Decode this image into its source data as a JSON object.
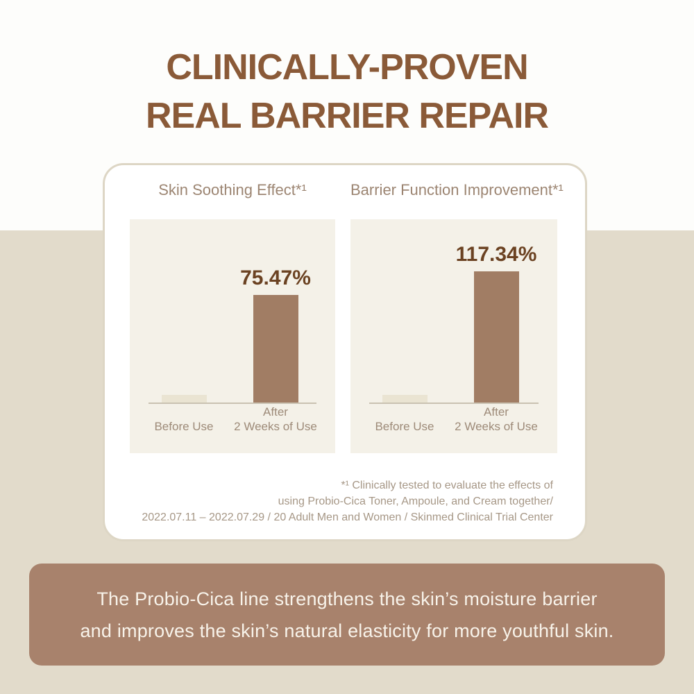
{
  "headline": {
    "line1": "CLINICALLY-PROVEN",
    "line2": "REAL BARRIER REPAIR"
  },
  "chart_data": [
    {
      "type": "bar",
      "title": "Skin Soothing Effect*¹",
      "categories": [
        "Before Use",
        "After 2 Weeks of Use"
      ],
      "values": [
        null,
        75.47
      ],
      "after_value": 75.47,
      "after_value_label": "75.47%",
      "before_label": "Before Use",
      "after_label_line1": "After",
      "after_label_line2": "2 Weeks of Use",
      "ylabel": "",
      "xlabel": "",
      "grid": false,
      "legend": "none",
      "bar_color": "#a17d64",
      "before_bar_color": "#eae4d2"
    },
    {
      "type": "bar",
      "title": "Barrier Function Improvement*¹",
      "categories": [
        "Before Use",
        "After 2 Weeks of Use"
      ],
      "values": [
        null,
        117.34
      ],
      "after_value": 117.34,
      "after_value_label": "117.34%",
      "before_label": "Before Use",
      "after_label_line1": "After",
      "after_label_line2": "2 Weeks of Use",
      "ylabel": "",
      "xlabel": "",
      "grid": false,
      "legend": "none",
      "bar_color": "#a17d64",
      "before_bar_color": "#eae4d2"
    }
  ],
  "footnote": {
    "line1": "*¹ Clinically tested to evaluate the effects of",
    "line2": "using Probio-Cica Toner, Ampoule, and Cream together/",
    "line3": "2022.07.11 – 2022.07.29 / 20 Adult Men and Women / Skinmed Clinical Trial Center"
  },
  "claim": {
    "line1": "The Probio-Cica line strengthens the skin’s moisture barrier",
    "line2": "and improves the skin’s natural elasticity for more youthful skin."
  },
  "colors": {
    "headline_brown": "#8a5a38",
    "page_top_bg": "#fdfdfb",
    "page_bottom_bg": "#e2dbcb",
    "card_bg": "#ffffff",
    "card_border": "#ddd6c5",
    "panel_bg": "#f4f1e8",
    "bar_after": "#a17d64",
    "bar_before": "#eae4d2",
    "value_label_brown": "#6b4222",
    "label_taupe": "#9d8a78",
    "footnote_taupe": "#a69786",
    "claim_box_bg": "#a8826c",
    "claim_text": "#f8f3ea"
  }
}
